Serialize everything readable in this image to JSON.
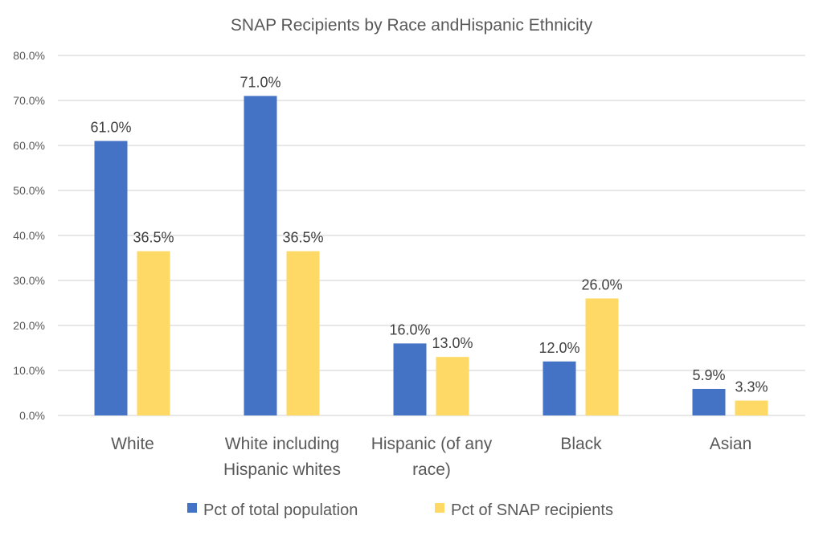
{
  "chart_data": {
    "type": "bar",
    "title": "SNAP Recipients by Race andHispanic Ethnicity",
    "categories": [
      [
        "White"
      ],
      [
        "White including",
        "Hispanic whites"
      ],
      [
        "Hispanic (of any",
        "race)"
      ],
      [
        "Black"
      ],
      [
        "Asian"
      ]
    ],
    "series": [
      {
        "name": "Pct of total population",
        "color": "#4472C4",
        "values": [
          61.0,
          71.0,
          16.0,
          12.0,
          5.9
        ],
        "labels": [
          "61.0%",
          "71.0%",
          "16.0%",
          "12.0%",
          "5.9%"
        ]
      },
      {
        "name": "Pct of SNAP recipients",
        "color": "#FFD966",
        "values": [
          36.5,
          36.5,
          13.0,
          26.0,
          3.3
        ],
        "labels": [
          "36.5%",
          "36.5%",
          "13.0%",
          "26.0%",
          "3.3%"
        ]
      }
    ],
    "ylim": [
      0,
      80
    ],
    "yticks": [
      "0.0%",
      "10.0%",
      "20.0%",
      "30.0%",
      "40.0%",
      "50.0%",
      "60.0%",
      "70.0%",
      "80.0%"
    ],
    "grid": true,
    "legend": "bottom"
  }
}
